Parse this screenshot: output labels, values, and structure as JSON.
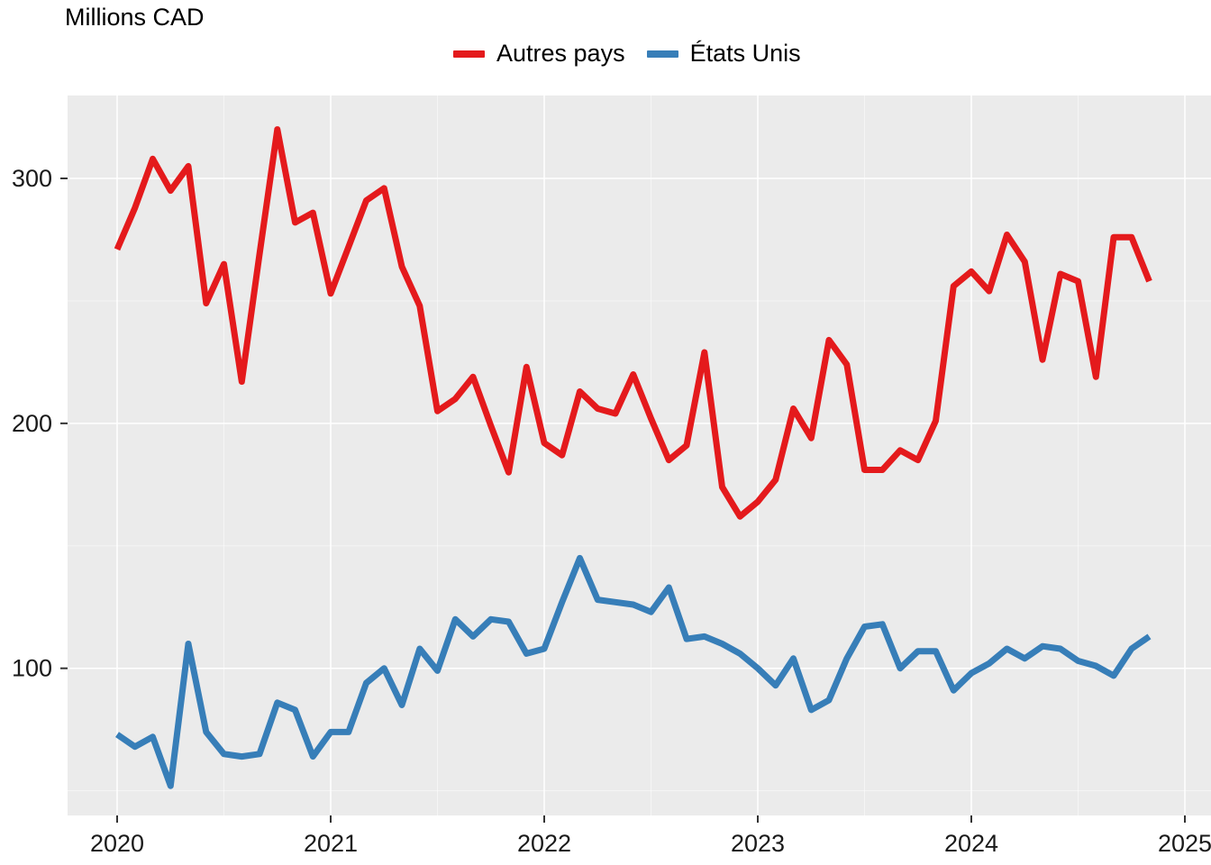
{
  "chart_data": {
    "type": "line",
    "title": "Millions CAD",
    "legend_position": "top-center",
    "panel_bg": "#EBEBEB",
    "grid_color": "#FFFFFF",
    "grid": "major+minor",
    "axis_text_color": "#1a1a1a",
    "x_tick_labels": [
      "2020",
      "2021",
      "2022",
      "2023",
      "2024",
      "2025"
    ],
    "y_tick_labels": [
      "100",
      "200",
      "300"
    ],
    "y_ticks": [
      100,
      200,
      300
    ],
    "y_minor_ticks": [
      50,
      150,
      250
    ],
    "ylim": [
      39,
      334
    ],
    "x_months": [
      "2020-01",
      "2020-02",
      "2020-03",
      "2020-04",
      "2020-05",
      "2020-06",
      "2020-07",
      "2020-08",
      "2020-09",
      "2020-10",
      "2020-11",
      "2020-12",
      "2021-01",
      "2021-02",
      "2021-03",
      "2021-04",
      "2021-05",
      "2021-06",
      "2021-07",
      "2021-08",
      "2021-09",
      "2021-10",
      "2021-11",
      "2021-12",
      "2022-01",
      "2022-02",
      "2022-03",
      "2022-04",
      "2022-05",
      "2022-06",
      "2022-07",
      "2022-08",
      "2022-09",
      "2022-10",
      "2022-11",
      "2022-12",
      "2023-01",
      "2023-02",
      "2023-03",
      "2023-04",
      "2023-05",
      "2023-06",
      "2023-07",
      "2023-08",
      "2023-09",
      "2023-10",
      "2023-11",
      "2023-12",
      "2024-01",
      "2024-02",
      "2024-03",
      "2024-04",
      "2024-05",
      "2024-06",
      "2024-07",
      "2024-08",
      "2024-09",
      "2024-10",
      "2024-11"
    ],
    "series": [
      {
        "name": "Autres pays",
        "color": "#E41A1C",
        "values": [
          271,
          288,
          308,
          295,
          305,
          249,
          265,
          217,
          269,
          320,
          282,
          286,
          253,
          272,
          291,
          296,
          264,
          248,
          205,
          210,
          219,
          199,
          180,
          223,
          192,
          187,
          213,
          206,
          204,
          220,
          202,
          185,
          191,
          229,
          174,
          162,
          168,
          177,
          206,
          194,
          234,
          224,
          181,
          181,
          189,
          185,
          201,
          256,
          262,
          254,
          277,
          266,
          226,
          261,
          258,
          219,
          276,
          276,
          258
        ]
      },
      {
        "name": "États Unis",
        "color": "#377EB8",
        "values": [
          73,
          68,
          72,
          52,
          110,
          74,
          65,
          64,
          65,
          86,
          83,
          64,
          74,
          74,
          94,
          100,
          85,
          108,
          99,
          120,
          113,
          120,
          119,
          106,
          108,
          127,
          145,
          128,
          127,
          126,
          123,
          133,
          112,
          113,
          110,
          106,
          100,
          93,
          104,
          83,
          87,
          104,
          117,
          118,
          100,
          107,
          107,
          91,
          98,
          102,
          108,
          104,
          109,
          108,
          103,
          101,
          97,
          108,
          113
        ]
      }
    ]
  }
}
